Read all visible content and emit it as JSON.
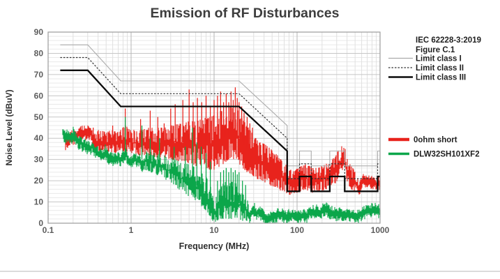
{
  "page": {
    "background": "#ffffff",
    "divider_color": "#dbdbdb"
  },
  "chart_data": {
    "type": "line",
    "title": "Emission of RF Disturbances",
    "xlabel": "Frequency (MHz)",
    "ylabel": "Noise Level (dBuV)",
    "x_scale": "log",
    "xlim": [
      0.1,
      1000
    ],
    "ylim": [
      0,
      90
    ],
    "x_tick_labels": [
      "0.1",
      "1",
      "10",
      "100",
      "1000"
    ],
    "y_tick_labels": [
      "0",
      "10",
      "20",
      "30",
      "40",
      "50",
      "60",
      "70",
      "80",
      "90"
    ],
    "y_major_step": 10,
    "y_minor_step": 2,
    "grid": "major+minor",
    "legend_position": "right",
    "annotation": {
      "line1": "IEC 62228-3:2019",
      "line2": "Figure C.1"
    },
    "colors": {
      "red_trace": "#e8231c",
      "green_trace": "#0ba64a",
      "limit_class_1": "#ababab",
      "limit_class_2": "#333333",
      "limit_class_3": "#0b0b0b",
      "grid_minor": "#e9e9e9",
      "grid_major": "#c6c6c6",
      "grid_decade": "#b6b6b6",
      "plot_border": "#9b9b9b"
    },
    "series": [
      {
        "name": "Limit class I",
        "role": "limit",
        "style": "solid",
        "color": "#ababab",
        "width": 1.1,
        "points": [
          [
            0.14,
            84
          ],
          [
            0.3,
            84
          ],
          [
            0.75,
            67
          ],
          [
            20,
            67
          ],
          [
            76,
            46
          ],
          [
            76,
            27
          ],
          [
            107,
            27
          ],
          [
            107,
            34
          ],
          [
            148,
            34
          ],
          [
            148,
            27
          ],
          [
            248,
            27
          ],
          [
            248,
            34
          ],
          [
            375,
            34
          ],
          [
            375,
            27
          ],
          [
            935,
            27
          ],
          [
            935,
            34
          ],
          [
            1000,
            34
          ]
        ]
      },
      {
        "name": "Limit class II",
        "role": "limit",
        "style": "dashed",
        "color": "#333333",
        "width": 1.2,
        "points": [
          [
            0.14,
            78
          ],
          [
            0.3,
            78
          ],
          [
            0.75,
            61
          ],
          [
            20,
            61
          ],
          [
            76,
            40
          ],
          [
            76,
            21
          ],
          [
            107,
            21
          ],
          [
            107,
            28
          ],
          [
            148,
            28
          ],
          [
            148,
            21
          ],
          [
            248,
            21
          ],
          [
            248,
            28
          ],
          [
            375,
            28
          ],
          [
            375,
            21
          ],
          [
            935,
            21
          ],
          [
            935,
            28
          ],
          [
            1000,
            28
          ]
        ]
      },
      {
        "name": "Limit class III",
        "role": "limit",
        "style": "solid",
        "color": "#0b0b0b",
        "width": 2.3,
        "points": [
          [
            0.14,
            72
          ],
          [
            0.3,
            72
          ],
          [
            0.75,
            55
          ],
          [
            20,
            55
          ],
          [
            76,
            34
          ],
          [
            76,
            15
          ],
          [
            107,
            15
          ],
          [
            107,
            22
          ],
          [
            148,
            22
          ],
          [
            148,
            15
          ],
          [
            248,
            15
          ],
          [
            248,
            22
          ],
          [
            375,
            22
          ],
          [
            375,
            15
          ],
          [
            935,
            15
          ],
          [
            935,
            22
          ],
          [
            1000,
            22
          ]
        ]
      },
      {
        "name": "0ohm short",
        "role": "trace",
        "color": "#e8231c",
        "seed": 1234,
        "envelope": [
          [
            0.16,
            36,
            40
          ],
          [
            0.2,
            36,
            42
          ],
          [
            0.3,
            35,
            43
          ],
          [
            0.4,
            34,
            44
          ],
          [
            0.5,
            34,
            43
          ],
          [
            0.6,
            33,
            44
          ],
          [
            0.7,
            33,
            43
          ],
          [
            0.85,
            33,
            46
          ],
          [
            1,
            33,
            44
          ],
          [
            1.2,
            32,
            44
          ],
          [
            1.5,
            32,
            45
          ],
          [
            2,
            31,
            45
          ],
          [
            2.5,
            31,
            45
          ],
          [
            3,
            30,
            46
          ],
          [
            4,
            29,
            47
          ],
          [
            5,
            28,
            48
          ],
          [
            6,
            27,
            48
          ],
          [
            7,
            26,
            49
          ],
          [
            8,
            26,
            50
          ],
          [
            9,
            25,
            50
          ],
          [
            10,
            25,
            51
          ],
          [
            11,
            26,
            52
          ],
          [
            12,
            27,
            53
          ],
          [
            13,
            28,
            53
          ],
          [
            14,
            29,
            54
          ],
          [
            15,
            30,
            54
          ],
          [
            16,
            30,
            55
          ],
          [
            17,
            30,
            55
          ],
          [
            18,
            30,
            56
          ],
          [
            19,
            29,
            54
          ],
          [
            20,
            28,
            52
          ],
          [
            22,
            26,
            49
          ],
          [
            25,
            24,
            46
          ],
          [
            28,
            23,
            43
          ],
          [
            32,
            21,
            40
          ],
          [
            38,
            20,
            38
          ],
          [
            45,
            18,
            36
          ],
          [
            55,
            17,
            33
          ],
          [
            65,
            15,
            30
          ],
          [
            76,
            14,
            27
          ],
          [
            85,
            13,
            25
          ],
          [
            95,
            14,
            25
          ],
          [
            110,
            15,
            27
          ],
          [
            125,
            16,
            28
          ],
          [
            140,
            15,
            27
          ],
          [
            160,
            14,
            26
          ],
          [
            180,
            15,
            26
          ],
          [
            200,
            15,
            27
          ],
          [
            225,
            16,
            28
          ],
          [
            250,
            17,
            29
          ],
          [
            280,
            18,
            31
          ],
          [
            310,
            20,
            34
          ],
          [
            340,
            23,
            36
          ],
          [
            360,
            24,
            37
          ],
          [
            380,
            22,
            35
          ],
          [
            400,
            20,
            33
          ],
          [
            430,
            17,
            29
          ],
          [
            470,
            15,
            26
          ],
          [
            520,
            14,
            23
          ],
          [
            580,
            13,
            21
          ],
          [
            650,
            13,
            20
          ],
          [
            750,
            13,
            20
          ],
          [
            850,
            13,
            19
          ],
          [
            950,
            13,
            19
          ],
          [
            1000,
            13,
            19
          ]
        ],
        "spikes": [
          [
            0.35,
            45
          ],
          [
            0.6,
            46
          ],
          [
            0.85,
            54
          ],
          [
            1.3,
            49
          ],
          [
            1.7,
            53
          ],
          [
            2.1,
            50
          ],
          [
            2.5,
            47
          ],
          [
            3.0,
            54
          ],
          [
            3.4,
            56
          ],
          [
            4.2,
            58
          ],
          [
            5.0,
            63
          ],
          [
            5.6,
            57
          ],
          [
            6.3,
            59
          ],
          [
            7.1,
            57
          ],
          [
            8.0,
            60
          ],
          [
            9.0,
            55
          ],
          [
            10.0,
            58
          ],
          [
            11.0,
            60
          ],
          [
            12.0,
            62
          ],
          [
            13.0,
            57
          ],
          [
            14.0,
            61
          ],
          [
            15.0,
            57
          ],
          [
            16.0,
            62
          ],
          [
            17.0,
            58
          ],
          [
            18.0,
            64
          ],
          [
            19.0,
            59
          ],
          [
            20.0,
            57
          ],
          [
            21.5,
            55
          ],
          [
            23.0,
            52
          ],
          [
            25.0,
            50
          ],
          [
            27.0,
            47
          ],
          [
            29.0,
            45
          ]
        ]
      },
      {
        "name": "DLW32SH101XF2",
        "role": "trace",
        "color": "#0ba64a",
        "seed": 777,
        "envelope": [
          [
            0.15,
            38,
            47
          ],
          [
            0.17,
            37,
            44
          ],
          [
            0.2,
            36,
            45
          ],
          [
            0.25,
            34,
            41
          ],
          [
            0.3,
            33,
            38
          ],
          [
            0.4,
            32,
            38
          ],
          [
            0.5,
            31,
            38
          ],
          [
            0.6,
            30,
            37
          ],
          [
            0.7,
            30,
            36
          ],
          [
            0.85,
            29,
            37
          ],
          [
            1,
            28,
            36
          ],
          [
            1.2,
            27,
            35
          ],
          [
            1.5,
            25,
            34
          ],
          [
            2,
            23,
            33
          ],
          [
            2.5,
            21,
            32
          ],
          [
            3,
            19,
            31
          ],
          [
            3.5,
            17,
            30
          ],
          [
            4,
            15,
            29
          ],
          [
            4.5,
            14,
            28
          ],
          [
            5,
            12,
            28
          ],
          [
            5.5,
            11,
            27
          ],
          [
            6,
            10,
            26
          ],
          [
            7,
            8,
            24
          ],
          [
            8,
            6,
            22
          ],
          [
            9,
            3,
            18
          ],
          [
            10,
            0,
            10
          ],
          [
            11,
            1,
            14
          ],
          [
            12,
            2,
            17
          ],
          [
            13,
            2,
            19
          ],
          [
            14,
            2,
            20
          ],
          [
            15,
            2,
            19
          ],
          [
            16,
            2,
            20
          ],
          [
            17,
            2,
            19
          ],
          [
            18,
            2,
            19
          ],
          [
            19,
            2,
            18
          ],
          [
            20,
            2,
            17
          ],
          [
            22,
            1,
            14
          ],
          [
            24,
            1,
            12
          ],
          [
            26,
            1,
            10
          ],
          [
            30,
            1,
            8
          ],
          [
            35,
            2,
            7
          ],
          [
            45,
            2,
            7
          ],
          [
            60,
            2,
            7
          ],
          [
            80,
            3,
            7
          ],
          [
            120,
            3,
            8
          ],
          [
            180,
            3,
            8
          ],
          [
            250,
            4,
            9
          ],
          [
            320,
            4,
            10
          ],
          [
            400,
            4,
            9
          ],
          [
            550,
            3,
            8
          ],
          [
            700,
            4,
            8
          ],
          [
            900,
            4,
            9
          ],
          [
            1000,
            4,
            9
          ]
        ],
        "spikes": [
          [
            0.85,
            50
          ],
          [
            1.35,
            46
          ],
          [
            1.7,
            40
          ],
          [
            2.2,
            40
          ],
          [
            3.3,
            36
          ],
          [
            4.5,
            36
          ],
          [
            5.5,
            45
          ],
          [
            6.2,
            38
          ],
          [
            7.0,
            36
          ],
          [
            8.0,
            33
          ],
          [
            9.0,
            29
          ],
          [
            11.0,
            20
          ],
          [
            12.0,
            24
          ],
          [
            13.0,
            25
          ],
          [
            14.0,
            26
          ],
          [
            15.0,
            24
          ],
          [
            16.0,
            26
          ],
          [
            17.0,
            24
          ],
          [
            18.0,
            25
          ],
          [
            19.0,
            23
          ],
          [
            20.0,
            24
          ],
          [
            22.0,
            20
          ],
          [
            24.0,
            18
          ]
        ]
      }
    ]
  }
}
